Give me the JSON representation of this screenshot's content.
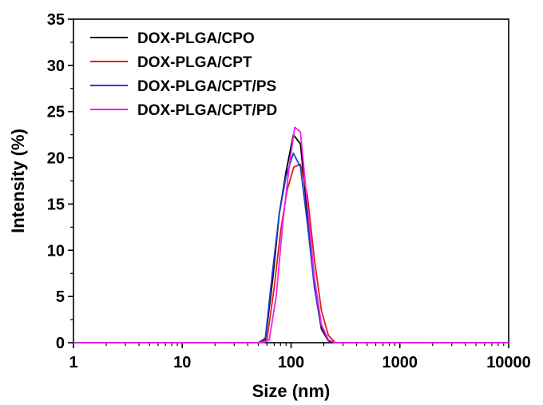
{
  "chart_data": {
    "type": "line",
    "xlabel": "Size (nm)",
    "ylabel": "Intensity (%)",
    "xscale": "log",
    "xlim": [
      1,
      10000
    ],
    "ylim": [
      0,
      35
    ],
    "xticks": [
      "1",
      "10",
      "100",
      "1000",
      "10000"
    ],
    "yticks": [
      "0",
      "5",
      "10",
      "15",
      "20",
      "25",
      "30",
      "35"
    ],
    "grid": false,
    "legend_position": "top-left",
    "series": [
      {
        "name": "DOX-PLGA/CPO",
        "color": "#000000",
        "x": [
          1,
          50,
          58,
          68,
          78,
          90,
          105,
          122,
          141,
          164,
          190,
          220,
          255,
          300,
          10000
        ],
        "y": [
          0,
          0,
          0.3,
          7,
          14,
          18.5,
          22.5,
          21.5,
          14,
          6,
          1.5,
          0.2,
          0,
          0,
          0
        ]
      },
      {
        "name": "DOX-PLGA/CPT",
        "color": "#e41a1c",
        "x": [
          1,
          52,
          60,
          70,
          80,
          92,
          106,
          122,
          141,
          164,
          190,
          220,
          255,
          300,
          10000
        ],
        "y": [
          0,
          0,
          0.3,
          6,
          12,
          16.5,
          19,
          19.3,
          16,
          9,
          3.5,
          0.8,
          0,
          0,
          0
        ]
      },
      {
        "name": "DOX-PLGA/CPT/PS",
        "color": "#1f3fcf",
        "x": [
          1,
          50,
          58,
          68,
          78,
          90,
          105,
          122,
          141,
          164,
          190,
          220,
          255,
          300,
          10000
        ],
        "y": [
          0,
          0,
          0.5,
          8,
          14,
          18,
          20.5,
          19,
          13,
          6,
          1.8,
          0.3,
          0,
          0,
          0
        ]
      },
      {
        "name": "DOX-PLGA/CPT/PD",
        "color": "#ee22ee",
        "x": [
          1,
          55,
          63,
          73,
          84,
          96,
          108,
          122,
          141,
          164,
          190,
          220,
          255,
          300,
          10000
        ],
        "y": [
          0,
          0,
          0.3,
          5,
          13,
          19,
          23.3,
          22.8,
          15,
          7,
          2,
          0.3,
          0,
          0,
          0
        ]
      }
    ]
  }
}
